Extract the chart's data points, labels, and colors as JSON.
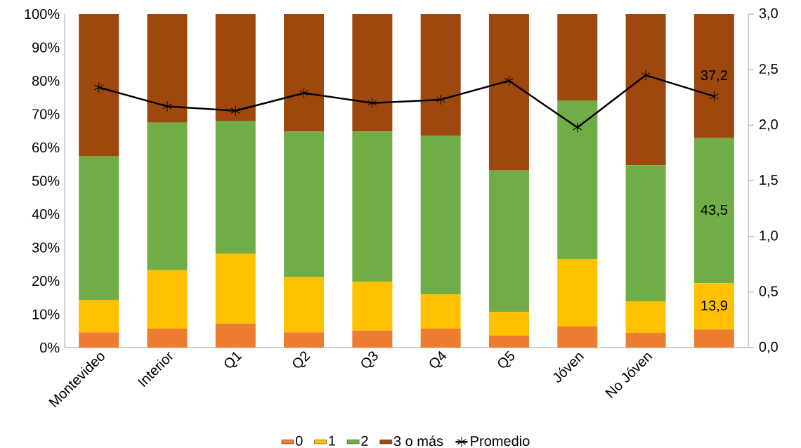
{
  "chart_data": {
    "type": "bar",
    "stacked": true,
    "categories": [
      "Montevideo",
      "Interior",
      "Q1",
      "Q2",
      "Q3",
      "Q4",
      "Q5",
      "Jóven",
      "No Jóven",
      null
    ],
    "series": [
      {
        "name": "0",
        "color": "#ed7d31",
        "values": [
          4.6,
          5.7,
          7.2,
          4.6,
          5.1,
          5.7,
          3.6,
          6.3,
          4.4,
          5.4
        ]
      },
      {
        "name": "1",
        "color": "#ffc000",
        "values": [
          9.7,
          17.5,
          21.0,
          16.5,
          14.7,
          10.3,
          7.1,
          20.2,
          9.5,
          13.9
        ],
        "value_labels": [
          null,
          null,
          null,
          null,
          null,
          null,
          null,
          null,
          null,
          "13,9"
        ]
      },
      {
        "name": "2",
        "color": "#70ad47",
        "values": [
          43.0,
          44.2,
          39.8,
          43.7,
          45.0,
          47.6,
          42.4,
          47.6,
          40.8,
          43.5
        ],
        "value_labels": [
          null,
          null,
          null,
          null,
          null,
          null,
          null,
          null,
          null,
          "43,5"
        ]
      },
      {
        "name": "3 o más",
        "color": "#9e480e",
        "values": [
          42.7,
          32.6,
          32.0,
          35.2,
          35.2,
          36.4,
          46.9,
          25.9,
          45.3,
          37.2
        ],
        "value_labels": [
          null,
          null,
          null,
          null,
          null,
          null,
          null,
          null,
          null,
          "37,2"
        ]
      },
      {
        "name": "Promedio",
        "type": "line",
        "axis": "y2",
        "color": "#000000",
        "marker": "cross",
        "values": [
          2.34,
          2.17,
          2.13,
          2.29,
          2.2,
          2.23,
          2.4,
          1.98,
          2.45,
          2.26
        ]
      }
    ],
    "ylim": [
      0,
      100
    ],
    "yticks": [
      {
        "value": 0,
        "label": "0%"
      },
      {
        "value": 10,
        "label": "10%"
      },
      {
        "value": 20,
        "label": "20%"
      },
      {
        "value": 30,
        "label": "30%"
      },
      {
        "value": 40,
        "label": "40%"
      },
      {
        "value": 50,
        "label": "50%"
      },
      {
        "value": 60,
        "label": "60%"
      },
      {
        "value": 70,
        "label": "70%"
      },
      {
        "value": 80,
        "label": "80%"
      },
      {
        "value": 90,
        "label": "90%"
      },
      {
        "value": 100,
        "label": "100%"
      }
    ],
    "y2lim": [
      0,
      3
    ],
    "y2ticks": [
      {
        "value": 0,
        "label": "0,0"
      },
      {
        "value": 0.5,
        "label": "0,5"
      },
      {
        "value": 1,
        "label": "1,0"
      },
      {
        "value": 1.5,
        "label": "1,5"
      },
      {
        "value": 2,
        "label": "2,0"
      },
      {
        "value": 2.5,
        "label": "2,5"
      },
      {
        "value": 3,
        "label": "3,0"
      }
    ],
    "legend": "bottom"
  }
}
